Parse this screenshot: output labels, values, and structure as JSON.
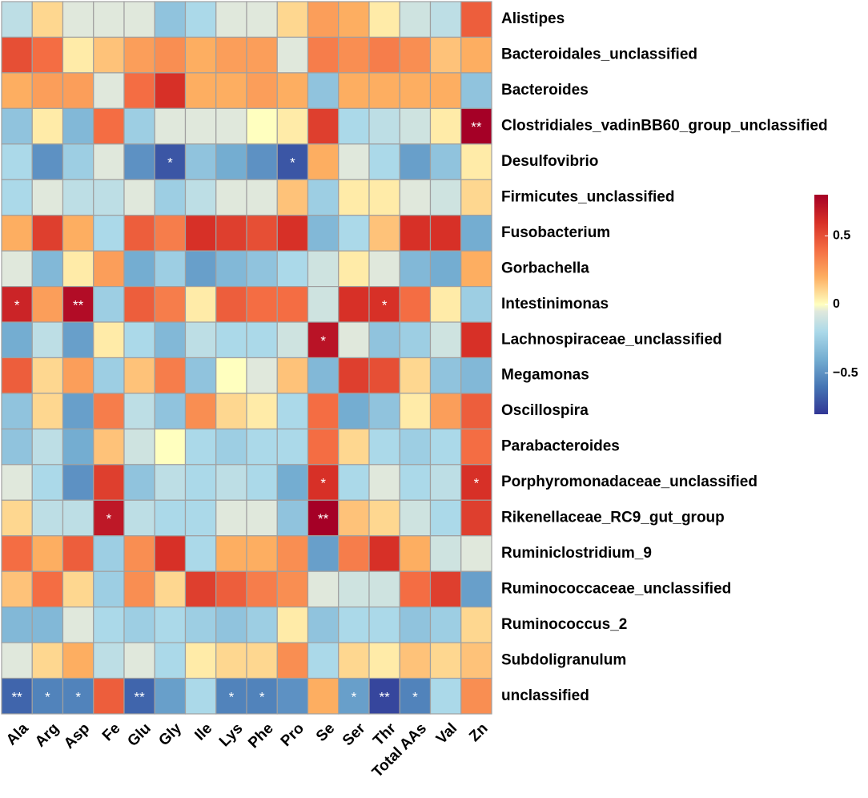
{
  "chart_data": {
    "type": "heatmap",
    "title": "",
    "xlabel": "",
    "ylabel": "",
    "rows": [
      "Alistipes",
      "Bacteroidales_unclassified",
      "Bacteroides",
      "Clostridiales_vadinBB60_group_unclassified",
      "Desulfovibrio",
      "Firmicutes_unclassified",
      "Fusobacterium",
      "Gorbachella",
      "Intestinimonas",
      "Lachnospiraceae_unclassified",
      "Megamonas",
      "Oscillospira",
      "Parabacteroides",
      "Porphyromonadaceae_unclassified",
      "Rikenellaceae_RC9_gut_group",
      "Ruminiclostridium_9",
      "Ruminococcaceae_unclassified",
      "Ruminococcus_2",
      "Subdoligranulum",
      "unclassified"
    ],
    "columns": [
      "Ala",
      "Arg",
      "Asp",
      "Fe",
      "Glu",
      "Gly",
      "Ile",
      "Lys",
      "Phe",
      "Pro",
      "Se",
      "Ser",
      "Thr",
      "Total AAs",
      "Val",
      "Zn"
    ],
    "values": [
      [
        -0.15,
        0.1,
        -0.05,
        -0.05,
        -0.05,
        -0.3,
        -0.2,
        -0.05,
        -0.05,
        0.1,
        0.25,
        0.2,
        0.05,
        -0.1,
        -0.15,
        0.45
      ],
      [
        0.5,
        0.4,
        0.05,
        0.15,
        0.25,
        0.3,
        0.2,
        0.25,
        0.25,
        -0.05,
        0.35,
        0.3,
        0.35,
        0.3,
        0.15,
        0.2
      ],
      [
        0.2,
        0.25,
        0.25,
        -0.05,
        0.4,
        0.6,
        0.2,
        0.2,
        0.25,
        0.2,
        -0.3,
        0.2,
        0.2,
        0.2,
        0.2,
        -0.3
      ],
      [
        -0.3,
        0.05,
        -0.35,
        0.4,
        -0.25,
        -0.05,
        -0.05,
        -0.05,
        0.0,
        0.05,
        0.55,
        -0.2,
        -0.15,
        -0.1,
        0.05,
        0.8
      ],
      [
        -0.2,
        -0.5,
        -0.25,
        -0.05,
        -0.5,
        -0.7,
        -0.3,
        -0.4,
        -0.5,
        -0.7,
        0.2,
        -0.05,
        -0.2,
        -0.45,
        -0.3,
        0.05
      ],
      [
        -0.2,
        -0.05,
        -0.15,
        -0.15,
        -0.05,
        -0.25,
        -0.15,
        -0.05,
        -0.05,
        0.15,
        -0.25,
        0.05,
        0.05,
        -0.05,
        -0.1,
        0.1
      ],
      [
        0.2,
        0.55,
        0.2,
        -0.2,
        0.45,
        0.35,
        0.6,
        0.55,
        0.5,
        0.6,
        -0.35,
        -0.2,
        0.15,
        0.6,
        0.6,
        -0.4
      ],
      [
        -0.05,
        -0.35,
        0.05,
        0.25,
        -0.4,
        -0.25,
        -0.45,
        -0.35,
        -0.3,
        -0.2,
        -0.1,
        0.05,
        -0.05,
        -0.35,
        -0.4,
        0.2
      ],
      [
        0.65,
        0.25,
        0.75,
        -0.25,
        0.45,
        0.35,
        0.05,
        0.45,
        0.4,
        0.4,
        -0.1,
        0.6,
        0.6,
        0.4,
        0.05,
        -0.25
      ],
      [
        -0.4,
        -0.15,
        -0.45,
        0.05,
        -0.2,
        -0.35,
        -0.15,
        -0.2,
        -0.2,
        -0.1,
        0.72,
        -0.05,
        -0.3,
        -0.25,
        -0.1,
        0.6
      ],
      [
        0.45,
        0.1,
        0.25,
        -0.25,
        0.15,
        0.35,
        -0.3,
        0.0,
        -0.05,
        0.15,
        -0.35,
        0.55,
        0.5,
        0.1,
        -0.3,
        -0.35
      ],
      [
        -0.3,
        0.1,
        -0.45,
        0.35,
        -0.15,
        -0.3,
        0.3,
        0.1,
        0.05,
        -0.2,
        0.4,
        -0.4,
        -0.3,
        0.05,
        0.25,
        0.45
      ],
      [
        -0.3,
        -0.15,
        -0.4,
        0.15,
        -0.1,
        0.0,
        -0.2,
        -0.25,
        -0.2,
        -0.2,
        0.4,
        0.1,
        -0.2,
        -0.25,
        -0.2,
        0.4
      ],
      [
        -0.05,
        -0.2,
        -0.5,
        0.55,
        -0.3,
        -0.15,
        -0.2,
        -0.15,
        -0.2,
        -0.4,
        0.6,
        -0.2,
        -0.05,
        -0.2,
        -0.15,
        0.6
      ],
      [
        0.1,
        -0.15,
        -0.15,
        0.7,
        -0.15,
        -0.2,
        -0.2,
        -0.05,
        -0.05,
        -0.3,
        0.8,
        0.15,
        0.1,
        -0.1,
        -0.2,
        0.55
      ],
      [
        0.4,
        0.2,
        0.45,
        -0.25,
        0.3,
        0.6,
        -0.2,
        0.2,
        0.2,
        0.3,
        -0.45,
        0.35,
        0.6,
        0.2,
        -0.1,
        -0.05
      ],
      [
        0.15,
        0.4,
        0.1,
        -0.25,
        0.3,
        0.1,
        0.55,
        0.45,
        0.35,
        0.3,
        -0.05,
        -0.1,
        -0.1,
        0.4,
        0.55,
        -0.45
      ],
      [
        -0.35,
        -0.35,
        -0.05,
        -0.2,
        -0.25,
        -0.2,
        -0.25,
        -0.3,
        -0.25,
        0.05,
        -0.3,
        -0.2,
        -0.2,
        -0.3,
        -0.25,
        0.1
      ],
      [
        -0.05,
        0.1,
        0.2,
        -0.15,
        -0.05,
        -0.2,
        0.05,
        0.1,
        0.1,
        0.3,
        -0.2,
        0.1,
        0.05,
        0.15,
        0.1,
        0.15
      ],
      [
        -0.65,
        -0.55,
        -0.55,
        0.45,
        -0.65,
        -0.45,
        -0.2,
        -0.55,
        -0.55,
        -0.5,
        0.2,
        -0.45,
        -0.75,
        -0.55,
        -0.2,
        0.3
      ]
    ],
    "significance": [
      [
        "",
        "",
        "",
        "",
        "",
        "",
        "",
        "",
        "",
        "",
        "",
        "",
        "",
        "",
        "",
        ""
      ],
      [
        "",
        "",
        "",
        "",
        "",
        "",
        "",
        "",
        "",
        "",
        "",
        "",
        "",
        "",
        "",
        ""
      ],
      [
        "",
        "",
        "",
        "",
        "",
        "",
        "",
        "",
        "",
        "",
        "",
        "",
        "",
        "",
        "",
        ""
      ],
      [
        "",
        "",
        "",
        "",
        "",
        "",
        "",
        "",
        "",
        "",
        "",
        "",
        "",
        "",
        "",
        "**"
      ],
      [
        "",
        "",
        "",
        "",
        "",
        "*",
        "",
        "",
        "",
        "*",
        "",
        "",
        "",
        "",
        "",
        ""
      ],
      [
        "",
        "",
        "",
        "",
        "",
        "",
        "",
        "",
        "",
        "",
        "",
        "",
        "",
        "",
        "",
        ""
      ],
      [
        "",
        "",
        "",
        "",
        "",
        "",
        "",
        "",
        "",
        "",
        "",
        "",
        "",
        "",
        "",
        ""
      ],
      [
        "",
        "",
        "",
        "",
        "",
        "",
        "",
        "",
        "",
        "",
        "",
        "",
        "",
        "",
        "",
        ""
      ],
      [
        "*",
        "",
        "**",
        "",
        "",
        "",
        "",
        "",
        "",
        "",
        "",
        "",
        "*",
        "",
        "",
        ""
      ],
      [
        "",
        "",
        "",
        "",
        "",
        "",
        "",
        "",
        "",
        "",
        "*",
        "",
        "",
        "",
        "",
        ""
      ],
      [
        "",
        "",
        "",
        "",
        "",
        "",
        "",
        "",
        "",
        "",
        "",
        "",
        "",
        "",
        "",
        ""
      ],
      [
        "",
        "",
        "",
        "",
        "",
        "",
        "",
        "",
        "",
        "",
        "",
        "",
        "",
        "",
        "",
        ""
      ],
      [
        "",
        "",
        "",
        "",
        "",
        "",
        "",
        "",
        "",
        "",
        "",
        "",
        "",
        "",
        "",
        ""
      ],
      [
        "",
        "",
        "",
        "",
        "",
        "",
        "",
        "",
        "",
        "",
        "*",
        "",
        "",
        "",
        "",
        "*"
      ],
      [
        "",
        "",
        "",
        "*",
        "",
        "",
        "",
        "",
        "",
        "",
        "**",
        "",
        "",
        "",
        "",
        ""
      ],
      [
        "",
        "",
        "",
        "",
        "",
        "",
        "",
        "",
        "",
        "",
        "",
        "",
        "",
        "",
        "",
        ""
      ],
      [
        "",
        "",
        "",
        "",
        "",
        "",
        "",
        "",
        "",
        "",
        "",
        "",
        "",
        "",
        "",
        ""
      ],
      [
        "",
        "",
        "",
        "",
        "",
        "",
        "",
        "",
        "",
        "",
        "",
        "",
        "",
        "",
        "",
        ""
      ],
      [
        "",
        "",
        "",
        "",
        "",
        "",
        "",
        "",
        "",
        "",
        "",
        "",
        "",
        "",
        "",
        ""
      ],
      [
        "**",
        "*",
        "*",
        "",
        "**",
        "",
        "",
        "*",
        "*",
        "",
        "",
        "*",
        "**",
        "*",
        "",
        ""
      ]
    ],
    "color_range": [
      -0.8,
      0.8
    ],
    "colorbar": {
      "ticks": [
        0.5,
        0,
        -0.5
      ],
      "tick_labels": [
        "0.5",
        "0",
        "−0.5"
      ],
      "low_color": "#313695",
      "mid_color": "#FFFFBF",
      "high_color": "#A50026"
    },
    "grid_color": "#A0A0A0"
  }
}
